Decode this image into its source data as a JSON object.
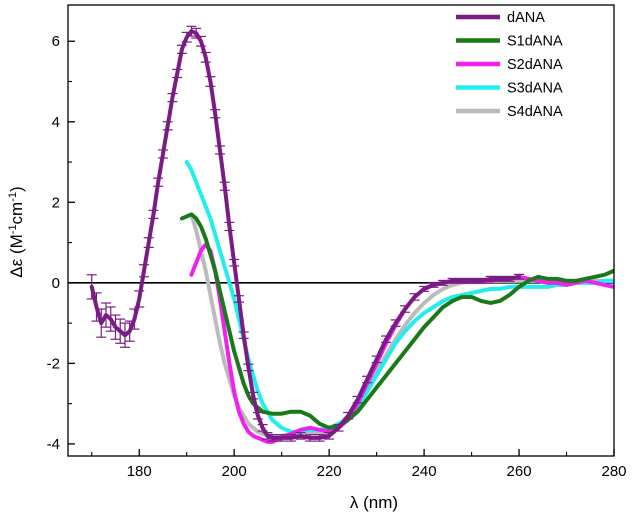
{
  "chart_data": {
    "type": "line",
    "xlabel": "λ (nm)",
    "ylabel_parts": [
      "Δε (M",
      "-1",
      "cm",
      "-1",
      ")"
    ],
    "xlim": [
      165,
      280
    ],
    "ylim": [
      -4.3,
      6.9
    ],
    "xticks": [
      180,
      200,
      220,
      240,
      260,
      280
    ],
    "yticks": [
      -4,
      -2,
      0,
      2,
      4,
      6
    ],
    "xtick_labels": [
      "180",
      "200",
      "220",
      "240",
      "260",
      "280"
    ],
    "ytick_labels": [
      "-4",
      "-2",
      "0",
      "2",
      "4",
      "6"
    ],
    "zero_line": true,
    "legend_position": "top-right",
    "series": [
      {
        "name": "dANA",
        "color": "#7b1c84",
        "error_bars": true,
        "x": [
          170,
          171,
          172,
          173,
          174,
          175,
          176,
          177,
          178,
          179,
          180,
          181,
          182,
          183,
          184,
          185,
          186,
          187,
          188,
          189,
          190,
          191,
          192,
          193,
          194,
          195,
          196,
          197,
          198,
          199,
          200,
          201,
          202,
          203,
          204,
          205,
          206,
          207,
          208,
          210,
          212,
          214,
          216,
          218,
          220,
          222,
          224,
          226,
          228,
          230,
          232,
          234,
          236,
          238,
          240,
          242,
          244,
          246,
          248,
          250,
          252,
          254,
          256,
          258,
          260
        ],
        "y": [
          -0.1,
          -0.6,
          -1.0,
          -0.8,
          -0.9,
          -1.1,
          -1.2,
          -1.3,
          -1.2,
          -0.9,
          -0.4,
          0.3,
          1.0,
          1.7,
          2.5,
          3.2,
          3.9,
          4.6,
          5.2,
          5.8,
          6.1,
          6.25,
          6.2,
          6.0,
          5.6,
          5.0,
          4.2,
          3.3,
          2.4,
          1.4,
          0.5,
          -0.4,
          -1.3,
          -2.1,
          -2.8,
          -3.3,
          -3.6,
          -3.8,
          -3.85,
          -3.85,
          -3.85,
          -3.8,
          -3.85,
          -3.85,
          -3.8,
          -3.6,
          -3.3,
          -2.9,
          -2.4,
          -1.9,
          -1.4,
          -1.0,
          -0.65,
          -0.35,
          -0.15,
          -0.05,
          0.0,
          0.05,
          0.05,
          0.05,
          0.05,
          0.1,
          0.1,
          0.1,
          0.15
        ],
        "errors": [
          0.3,
          0.35,
          0.35,
          0.3,
          0.3,
          0.3,
          0.3,
          0.3,
          0.25,
          0.25,
          0.2,
          0.15,
          0.12,
          0.1,
          0.1,
          0.1,
          0.1,
          0.1,
          0.1,
          0.1,
          0.12,
          0.12,
          0.12,
          0.12,
          0.12,
          0.12,
          0.1,
          0.1,
          0.1,
          0.1,
          0.08,
          0.08,
          0.08,
          0.08,
          0.08,
          0.08,
          0.08,
          0.08,
          0.08,
          0.08,
          0.08,
          0.08,
          0.08,
          0.08,
          0.08,
          0.08,
          0.08,
          0.08,
          0.08,
          0.08,
          0.08,
          0.08,
          0.08,
          0.08,
          0.06,
          0.06,
          0.06,
          0.06,
          0.06,
          0.06,
          0.06,
          0.06,
          0.06,
          0.06,
          0.06
        ]
      },
      {
        "name": "S1dANA",
        "color": "#1a7a1a",
        "x": [
          189,
          190,
          191,
          192,
          193,
          194,
          195,
          196,
          197,
          198,
          199,
          200,
          201,
          202,
          203,
          204,
          206,
          208,
          210,
          212,
          214,
          216,
          218,
          220,
          222,
          224,
          226,
          228,
          230,
          232,
          234,
          236,
          238,
          240,
          242,
          244,
          246,
          248,
          250,
          252,
          254,
          256,
          258,
          260,
          262,
          264,
          266,
          268,
          270,
          272,
          274,
          276,
          278,
          280
        ],
        "y": [
          1.6,
          1.65,
          1.7,
          1.6,
          1.4,
          1.1,
          0.7,
          0.3,
          -0.2,
          -0.7,
          -1.2,
          -1.7,
          -2.1,
          -2.5,
          -2.8,
          -3.0,
          -3.2,
          -3.25,
          -3.25,
          -3.2,
          -3.2,
          -3.3,
          -3.5,
          -3.6,
          -3.55,
          -3.4,
          -3.2,
          -2.9,
          -2.6,
          -2.3,
          -2.0,
          -1.7,
          -1.4,
          -1.1,
          -0.85,
          -0.6,
          -0.45,
          -0.35,
          -0.35,
          -0.45,
          -0.5,
          -0.45,
          -0.3,
          -0.1,
          0.05,
          0.15,
          0.1,
          0.1,
          0.05,
          0.05,
          0.1,
          0.15,
          0.2,
          0.3
        ]
      },
      {
        "name": "S2dANA",
        "color": "#ee22ee",
        "x": [
          191,
          192,
          193,
          194,
          195,
          196,
          197,
          198,
          199,
          200,
          201,
          202,
          203,
          204,
          205,
          206,
          207,
          208,
          209,
          210,
          212,
          214,
          216,
          218,
          220,
          222,
          224,
          226,
          228,
          230,
          232,
          234,
          236,
          238,
          240,
          242,
          244,
          246,
          248,
          250,
          252,
          254,
          256,
          258,
          260,
          262,
          264,
          266,
          268,
          270,
          272,
          274,
          276,
          278,
          280
        ],
        "y": [
          0.2,
          0.5,
          0.8,
          0.95,
          0.8,
          0.3,
          -0.4,
          -1.2,
          -2.0,
          -2.7,
          -3.2,
          -3.5,
          -3.7,
          -3.8,
          -3.85,
          -3.9,
          -3.95,
          -3.95,
          -3.9,
          -3.85,
          -3.75,
          -3.65,
          -3.6,
          -3.65,
          -3.7,
          -3.6,
          -3.4,
          -3.0,
          -2.5,
          -2.0,
          -1.5,
          -1.05,
          -0.65,
          -0.35,
          -0.15,
          -0.05,
          0.0,
          0.05,
          0.05,
          0.05,
          0.05,
          0.05,
          0.1,
          0.1,
          0.15,
          0.1,
          0.05,
          0.0,
          0.0,
          -0.05,
          0.0,
          0.05,
          0.0,
          -0.05,
          -0.1
        ]
      },
      {
        "name": "S3dANA",
        "color": "#22eeee",
        "x": [
          190,
          191,
          192,
          193,
          194,
          195,
          196,
          197,
          198,
          199,
          200,
          201,
          202,
          203,
          204,
          205,
          206,
          208,
          210,
          212,
          214,
          216,
          218,
          220,
          222,
          224,
          226,
          228,
          230,
          232,
          234,
          236,
          238,
          240,
          242,
          244,
          246,
          248,
          250,
          252,
          254,
          256,
          258,
          260,
          262,
          264,
          266,
          268,
          270,
          272,
          274,
          276,
          278,
          280
        ],
        "y": [
          3.0,
          2.8,
          2.5,
          2.2,
          1.9,
          1.6,
          1.2,
          0.8,
          0.4,
          0.0,
          -0.4,
          -0.9,
          -1.4,
          -1.9,
          -2.3,
          -2.7,
          -3.0,
          -3.4,
          -3.6,
          -3.7,
          -3.7,
          -3.65,
          -3.65,
          -3.6,
          -3.5,
          -3.35,
          -3.1,
          -2.7,
          -2.3,
          -1.9,
          -1.5,
          -1.2,
          -0.95,
          -0.75,
          -0.6,
          -0.45,
          -0.35,
          -0.3,
          -0.25,
          -0.2,
          -0.15,
          -0.15,
          -0.1,
          -0.1,
          -0.1,
          -0.1,
          -0.1,
          -0.05,
          -0.05,
          0.0,
          0.0,
          0.0,
          0.05,
          0.05
        ]
      },
      {
        "name": "S4dANA",
        "color": "#bbbbbb",
        "x": [
          191,
          192,
          193,
          194,
          195,
          196,
          197,
          198,
          199,
          200,
          201,
          202,
          203,
          204,
          205,
          206,
          208,
          210,
          212,
          214,
          216,
          218,
          220,
          222,
          224,
          226,
          228,
          230,
          232,
          234,
          236,
          238,
          240,
          242,
          244,
          246,
          248,
          250,
          252,
          254,
          256,
          258,
          260,
          262,
          264,
          266,
          268,
          270,
          272,
          274,
          276,
          278,
          280
        ],
        "y": [
          1.7,
          1.3,
          0.8,
          0.3,
          -0.3,
          -0.9,
          -1.5,
          -2.0,
          -2.4,
          -2.8,
          -3.1,
          -3.3,
          -3.5,
          -3.6,
          -3.7,
          -3.75,
          -3.8,
          -3.8,
          -3.75,
          -3.7,
          -3.7,
          -3.75,
          -3.7,
          -3.55,
          -3.3,
          -3.0,
          -2.6,
          -2.2,
          -1.8,
          -1.4,
          -1.05,
          -0.75,
          -0.5,
          -0.3,
          -0.15,
          -0.05,
          0.0,
          0.05,
          0.05,
          0.05,
          0.05,
          0.05,
          0.05,
          0.05,
          0.05,
          0.05,
          0.05,
          0.05,
          0.05,
          0.05,
          0.05,
          0.05,
          0.05
        ]
      }
    ]
  }
}
